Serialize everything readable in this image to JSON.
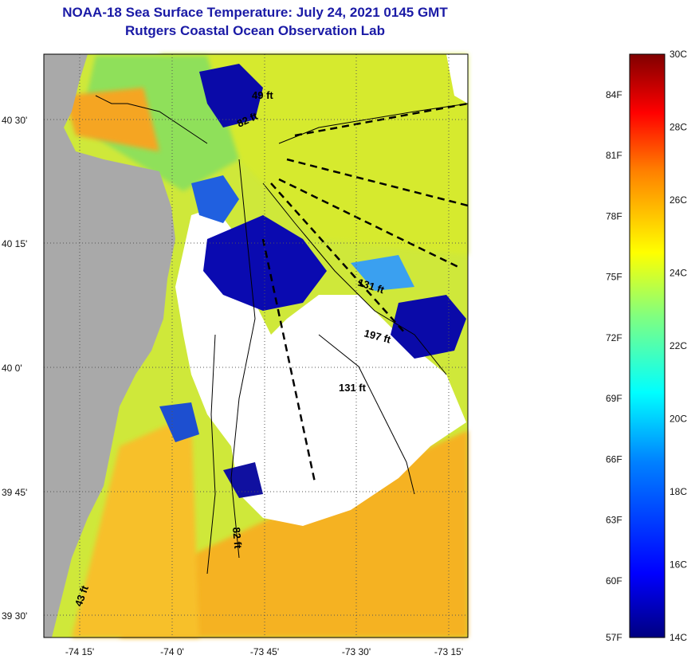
{
  "header": {
    "title": "NOAA-18 Sea Surface Temperature:  July 24, 2021 0145 GMT",
    "subtitle": "Rutgers Coastal Ocean Observation Lab"
  },
  "map": {
    "lat_ticks": [
      "40 30'",
      "40 15'",
      "40 0'",
      "39 45'",
      "39 30'"
    ],
    "lon_ticks": [
      "-74 15'",
      "-74 0'",
      "-73 45'",
      "-73 30'",
      "-73 15'"
    ],
    "depth_labels": [
      "49 ft",
      "82 ft",
      "131 ft",
      "197 ft",
      "131 ft",
      "82 ft",
      "43 ft"
    ]
  },
  "colorbar": {
    "celsius": [
      "30C",
      "28C",
      "26C",
      "24C",
      "22C",
      "20C",
      "18C",
      "16C",
      "14C"
    ],
    "fahrenheit": [
      "84F",
      "81F",
      "78F",
      "75F",
      "72F",
      "69F",
      "66F",
      "63F",
      "60F",
      "57F"
    ],
    "colors": [
      "#800000",
      "#ff0000",
      "#ff8000",
      "#ffff00",
      "#80ff80",
      "#00ffff",
      "#0080ff",
      "#0000ff",
      "#000080"
    ]
  }
}
